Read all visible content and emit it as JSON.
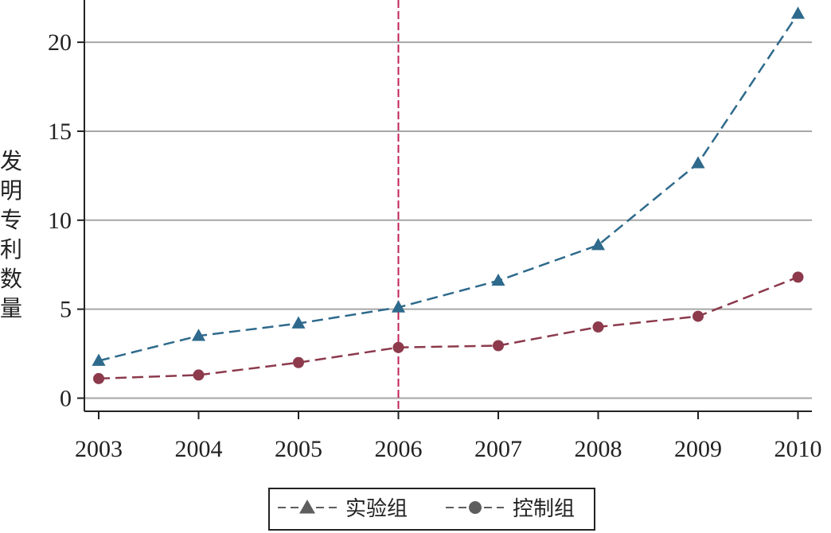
{
  "chart_data": {
    "type": "line",
    "title": "",
    "xlabel": "",
    "ylabel": "发明专利数量",
    "categories": [
      "2003",
      "2004",
      "2005",
      "2006",
      "2007",
      "2008",
      "2009",
      "2010"
    ],
    "yticks": [
      "0",
      "5",
      "10",
      "15",
      "20"
    ],
    "ylim": [
      -0.5,
      22.4
    ],
    "grid": true,
    "reference_line_x": "2006",
    "legend_position": "bottom",
    "series": [
      {
        "name": "实验组",
        "marker": "triangle",
        "line_style": "dashed",
        "color": "#2e6a8c",
        "values": [
          2.1,
          3.5,
          4.2,
          5.1,
          6.6,
          8.6,
          13.2,
          21.6
        ]
      },
      {
        "name": "控制组",
        "marker": "circle",
        "line_style": "dashed",
        "color": "#8c3a4c",
        "values": [
          1.1,
          1.3,
          2.0,
          2.85,
          2.95,
          4.0,
          4.6,
          6.8
        ]
      }
    ],
    "colors": {
      "grid": "#a6a6a6",
      "axis": "#222222",
      "reference_line": "#c0225a",
      "legend_marker": "#5e5e5e"
    }
  }
}
